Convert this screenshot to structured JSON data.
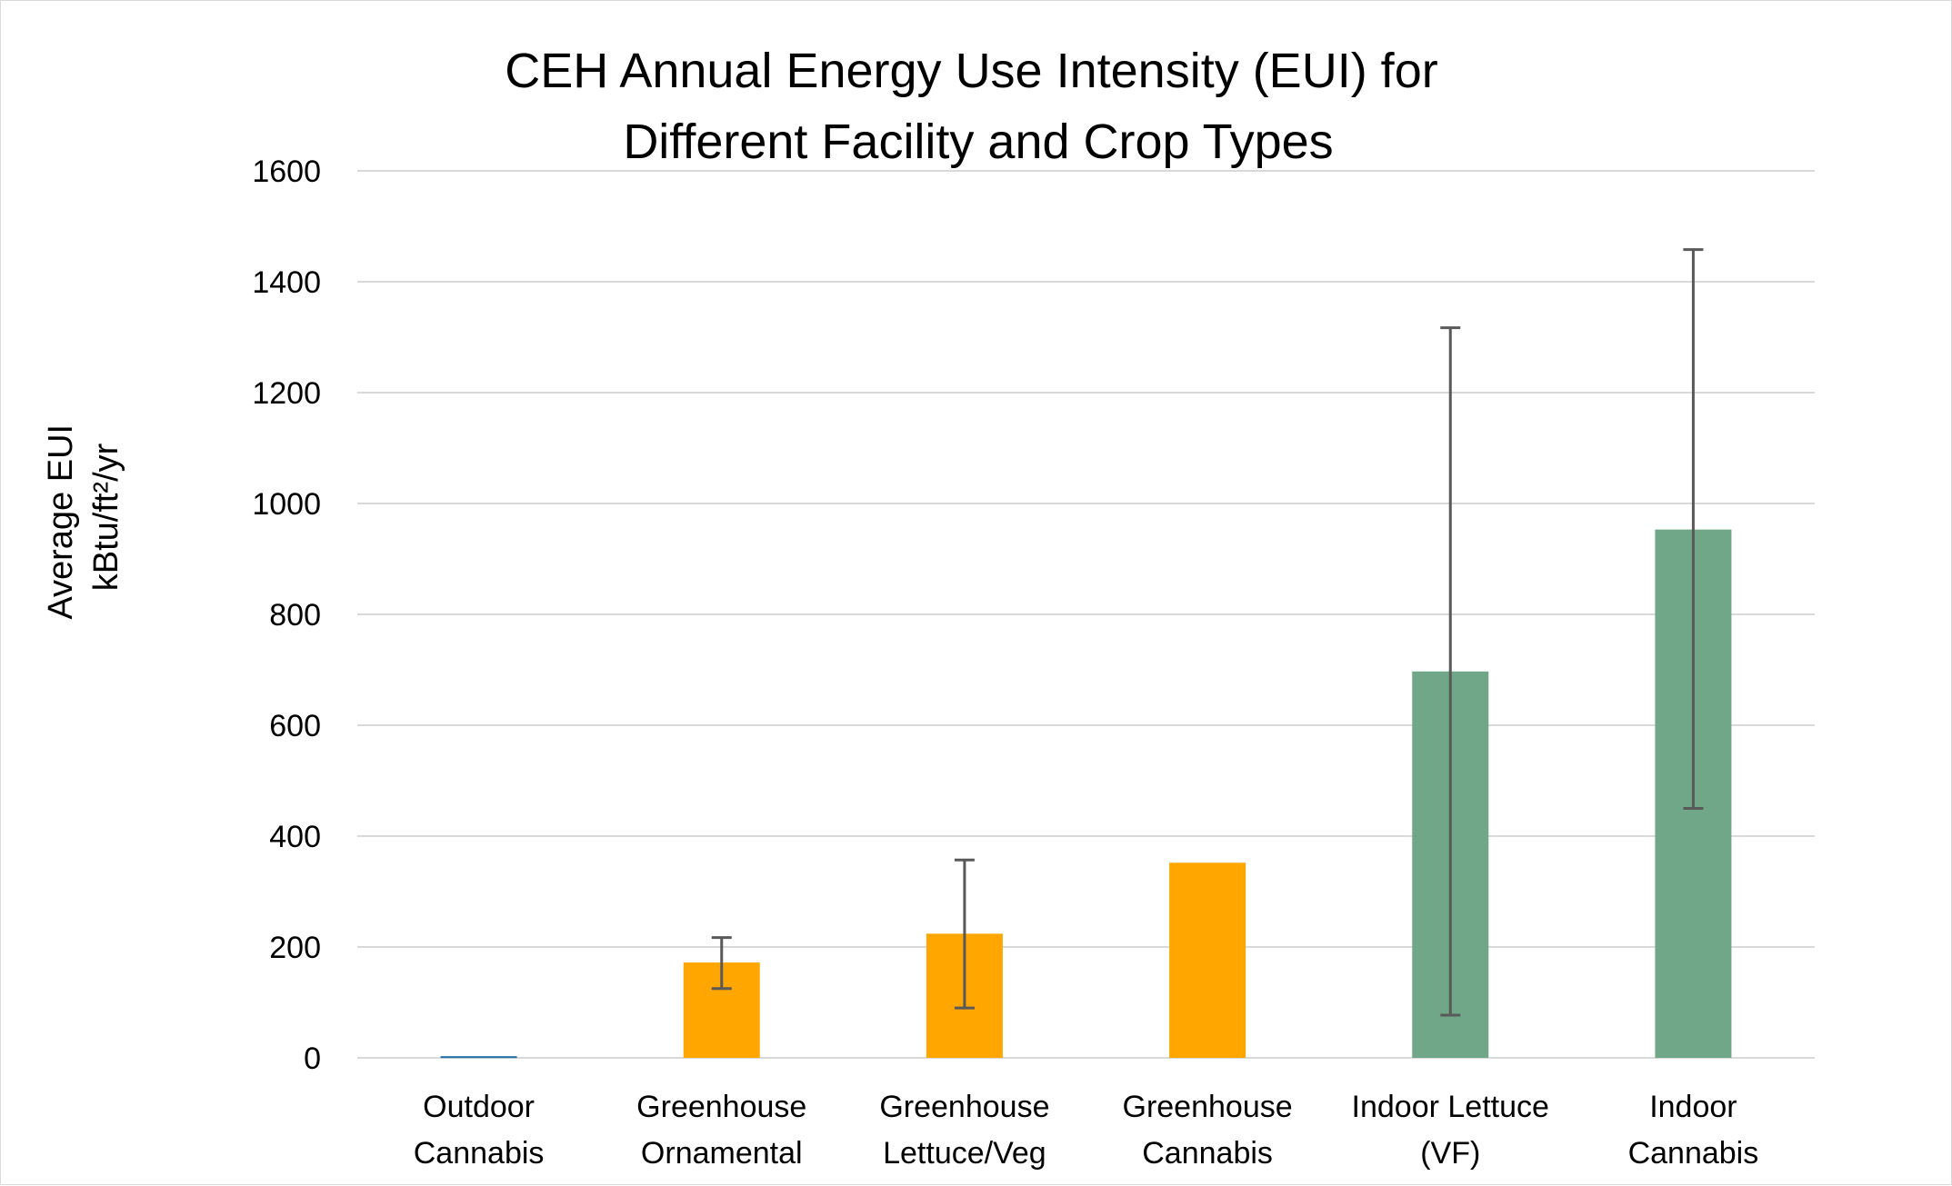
{
  "chart_data": {
    "type": "bar",
    "title_lines": [
      "CEH Annual Energy Use Intensity (EUI) for",
      "Different Facility and Crop Types"
    ],
    "ylabel_lines": [
      "Average EUI",
      "kBtu/ft²/yr"
    ],
    "xlabel": "",
    "ylim": [
      0,
      1600
    ],
    "yticks": [
      0,
      200,
      400,
      600,
      800,
      1000,
      1200,
      1400,
      1600
    ],
    "grid": true,
    "legend": "none",
    "categories": [
      [
        "Outdoor",
        "Cannabis"
      ],
      [
        "Greenhouse",
        "Ornamental"
      ],
      [
        "Greenhouse",
        "Lettuce/Veg"
      ],
      [
        "Greenhouse",
        "Cannabis"
      ],
      [
        "Indoor Lettuce",
        "(VF)"
      ],
      [
        "Indoor",
        "Cannabis"
      ]
    ],
    "values": [
      3,
      172,
      224,
      352,
      697,
      953
    ],
    "error_bars": [
      null,
      [
        125,
        217
      ],
      [
        90,
        357
      ],
      null,
      [
        77,
        1317
      ],
      [
        450,
        1458
      ]
    ],
    "colors": [
      "#1f6fa8",
      "#ffa600",
      "#ffa600",
      "#ffa600",
      "#70a788",
      "#70a788"
    ],
    "error_bar_color": "#595959",
    "grid_color": "#d9d9d9"
  }
}
